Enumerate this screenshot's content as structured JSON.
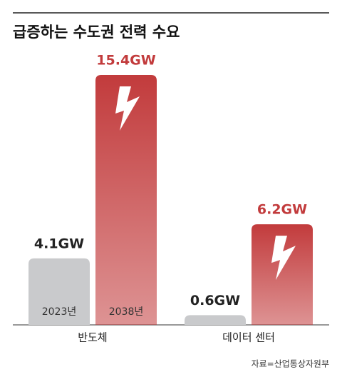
{
  "chart_data": {
    "type": "bar",
    "title": "급증하는 수도권 전력 수요",
    "categories": [
      "반도체",
      "데이터 센터"
    ],
    "series": [
      {
        "name": "2023년",
        "color": "#c9cacc",
        "values": [
          4.1,
          0.6
        ],
        "value_labels": [
          "4.1GW",
          "0.6GW"
        ]
      },
      {
        "name": "2038년",
        "color": "#c23b3c",
        "values": [
          15.4,
          6.2
        ],
        "value_labels": [
          "15.4GW",
          "6.2GW"
        ]
      }
    ],
    "source": "자료=산업통상자원부"
  }
}
